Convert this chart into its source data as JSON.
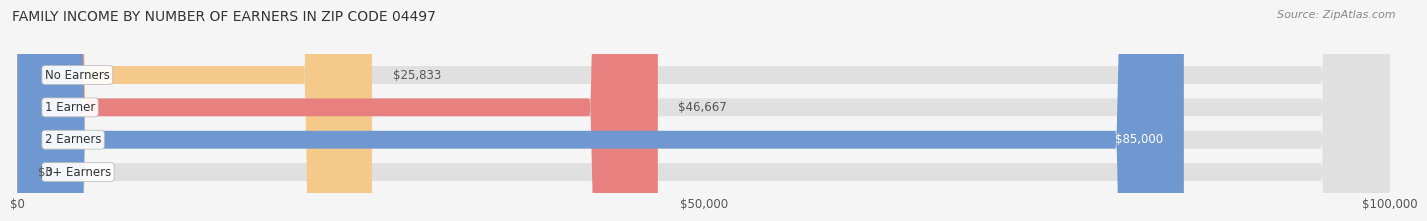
{
  "title": "FAMILY INCOME BY NUMBER OF EARNERS IN ZIP CODE 04497",
  "source": "Source: ZipAtlas.com",
  "categories": [
    "No Earners",
    "1 Earner",
    "2 Earners",
    "3+ Earners"
  ],
  "values": [
    25833,
    46667,
    85000,
    0
  ],
  "bar_colors": [
    "#f5c98a",
    "#e88080",
    "#7098d0",
    "#c8a8d8"
  ],
  "bar_bg_color": "#e0e0e0",
  "value_labels": [
    "$25,833",
    "$46,667",
    "$85,000",
    "$0"
  ],
  "value_label_colors": [
    "#555555",
    "#555555",
    "#ffffff",
    "#555555"
  ],
  "xlim": [
    0,
    100000
  ],
  "xticks": [
    0,
    50000,
    100000
  ],
  "xtick_labels": [
    "$0",
    "$50,000",
    "$100,000"
  ],
  "bg_color": "#f5f5f5",
  "bar_height": 0.55,
  "title_fontsize": 10,
  "source_fontsize": 8,
  "label_fontsize": 8.5,
  "tick_fontsize": 8.5
}
